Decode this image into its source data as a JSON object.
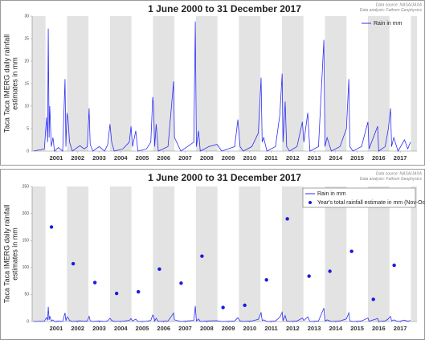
{
  "chart_data": [
    {
      "type": "line",
      "title": "1 June 2000 to 31 December 2017",
      "source": "Data source: NASA/JAXA",
      "analysis": "Data analysis: Fathom Geophysics",
      "ylabel": [
        "Taca Taca IMERG daily rainfall",
        "estimates in mm"
      ],
      "xlim": [
        2000.38,
        2018.28
      ],
      "ylim": [
        0,
        30
      ],
      "yticks": [
        0,
        5,
        10,
        15,
        20,
        25,
        30
      ],
      "xticks": [
        {
          "value": 2001.5,
          "label": "2001"
        },
        {
          "value": 2002.5,
          "label": "2002"
        },
        {
          "value": 2003.5,
          "label": "2003"
        },
        {
          "value": 2004.5,
          "label": "2004"
        },
        {
          "value": 2005.5,
          "label": "2005"
        },
        {
          "value": 2006.5,
          "label": "2006"
        },
        {
          "value": 2007.5,
          "label": "2007"
        },
        {
          "value": 2008.5,
          "label": "2008"
        },
        {
          "value": 2009.5,
          "label": "2009"
        },
        {
          "value": 2010.5,
          "label": "2010"
        },
        {
          "value": 2011.5,
          "label": "2011"
        },
        {
          "value": 2012.5,
          "label": "2012"
        },
        {
          "value": 2013.5,
          "label": "2013"
        },
        {
          "value": 2014.5,
          "label": "2014"
        },
        {
          "value": 2015.5,
          "label": "2015"
        },
        {
          "value": 2016.5,
          "label": "2016"
        },
        {
          "value": 2017.5,
          "label": "2017"
        }
      ],
      "legend": "upper right",
      "series": [
        {
          "name": "Rain in mm",
          "color": "#2f2ff5",
          "x": [
            2000.45,
            2000.95,
            2001.05,
            2001.1,
            2001.13,
            2001.17,
            2001.2,
            2001.27,
            2001.35,
            2001.42,
            2001.6,
            2001.8,
            2001.91,
            2001.95,
            2002.0,
            2002.05,
            2002.12,
            2002.25,
            2002.6,
            2002.8,
            2002.95,
            2003.03,
            2003.08,
            2003.2,
            2003.5,
            2003.75,
            2003.9,
            2004.0,
            2004.08,
            2004.2,
            2004.6,
            2004.9,
            2004.98,
            2005.05,
            2005.2,
            2005.3,
            2005.7,
            2005.9,
            2005.99,
            2006.03,
            2006.08,
            2006.15,
            2006.25,
            2006.7,
            2006.96,
            2007.0,
            2007.1,
            2007.3,
            2007.6,
            2007.9,
            2007.97,
            2008.02,
            2008.12,
            2008.2,
            2008.6,
            2008.98,
            2009.2,
            2009.5,
            2009.8,
            2009.95,
            2010.05,
            2010.2,
            2010.6,
            2010.9,
            2011.03,
            2011.08,
            2011.15,
            2011.3,
            2011.7,
            2011.9,
            2012.01,
            2012.05,
            2012.15,
            2012.22,
            2012.35,
            2012.7,
            2012.95,
            2013.02,
            2013.2,
            2013.3,
            2013.7,
            2013.95,
            2014.0,
            2014.1,
            2014.3,
            2014.7,
            2015.0,
            2015.11,
            2015.16,
            2015.3,
            2015.7,
            2016.0,
            2016.05,
            2016.45,
            2016.5,
            2016.8,
            2016.95,
            2017.05,
            2017.1,
            2017.2,
            2017.4,
            2017.7,
            2017.85,
            2017.98
          ],
          "values": [
            0,
            0.5,
            7.5,
            2,
            27.2,
            3,
            10,
            1,
            3,
            0,
            0.8,
            0,
            16,
            1,
            8.5,
            7,
            2,
            0,
            1.2,
            0.5,
            1,
            9.5,
            1.5,
            0,
            1,
            0,
            1.5,
            6,
            2,
            0,
            0.5,
            2,
            5.5,
            1,
            4.5,
            0,
            0.5,
            2,
            12,
            10,
            1,
            6,
            0,
            1,
            15.5,
            3,
            2,
            0,
            1,
            2,
            28.8,
            1,
            4.5,
            0,
            1,
            1.5,
            0,
            0.5,
            1,
            7,
            1,
            0,
            1,
            4,
            16.3,
            2,
            3,
            0,
            1,
            8,
            17.2,
            2,
            11,
            1,
            0,
            1,
            6.5,
            2,
            8.5,
            0,
            1,
            24.7,
            1,
            3,
            0,
            1,
            5,
            16,
            1,
            0,
            1,
            6.5,
            0.5,
            5.5,
            0,
            1,
            5,
            9.5,
            1,
            3,
            0,
            2.5,
            0.5,
            2
          ]
        }
      ]
    },
    {
      "type": "line",
      "title": "1 June 2000 to 31 December 2017",
      "source": "Data source: NASA/JAXA",
      "analysis": "Data analysis: Fathom Geophysics",
      "ylabel": [
        "Taca Taca IMERG daily rainfall",
        "estimates in mm"
      ],
      "xlim": [
        2000.38,
        2018.28
      ],
      "ylim": [
        0,
        250
      ],
      "yticks": [
        0,
        50,
        100,
        150,
        200,
        250
      ],
      "xticks": [
        {
          "value": 2001.5,
          "label": "2001"
        },
        {
          "value": 2002.5,
          "label": "2002"
        },
        {
          "value": 2003.5,
          "label": "2003"
        },
        {
          "value": 2004.5,
          "label": "2004"
        },
        {
          "value": 2005.5,
          "label": "2005"
        },
        {
          "value": 2006.5,
          "label": "2006"
        },
        {
          "value": 2007.5,
          "label": "2007"
        },
        {
          "value": 2008.5,
          "label": "2008"
        },
        {
          "value": 2009.5,
          "label": "2009"
        },
        {
          "value": 2010.5,
          "label": "2010"
        },
        {
          "value": 2011.5,
          "label": "2011"
        },
        {
          "value": 2012.5,
          "label": "2012"
        },
        {
          "value": 2013.5,
          "label": "2013"
        },
        {
          "value": 2014.5,
          "label": "2014"
        },
        {
          "value": 2015.5,
          "label": "2015"
        },
        {
          "value": 2016.5,
          "label": "2016"
        },
        {
          "value": 2017.5,
          "label": "2017"
        }
      ],
      "legend": "upper right",
      "series": [
        {
          "name": "Rain in mm",
          "color": "#2f2ff5",
          "x": [
            2000.45,
            2000.95,
            2001.05,
            2001.1,
            2001.13,
            2001.17,
            2001.2,
            2001.27,
            2001.35,
            2001.42,
            2001.6,
            2001.8,
            2001.91,
            2001.95,
            2002.0,
            2002.05,
            2002.12,
            2002.25,
            2002.6,
            2002.8,
            2002.95,
            2003.03,
            2003.08,
            2003.2,
            2003.5,
            2003.75,
            2003.9,
            2004.0,
            2004.08,
            2004.2,
            2004.6,
            2004.9,
            2004.98,
            2005.05,
            2005.2,
            2005.3,
            2005.7,
            2005.9,
            2005.99,
            2006.03,
            2006.08,
            2006.15,
            2006.25,
            2006.7,
            2006.96,
            2007.0,
            2007.1,
            2007.3,
            2007.6,
            2007.9,
            2007.97,
            2008.02,
            2008.12,
            2008.2,
            2008.6,
            2008.98,
            2009.2,
            2009.5,
            2009.8,
            2009.95,
            2010.05,
            2010.2,
            2010.6,
            2010.9,
            2011.03,
            2011.08,
            2011.15,
            2011.3,
            2011.7,
            2011.9,
            2012.01,
            2012.05,
            2012.15,
            2012.22,
            2012.35,
            2012.7,
            2012.95,
            2013.02,
            2013.2,
            2013.3,
            2013.7,
            2013.95,
            2014.0,
            2014.1,
            2014.3,
            2014.7,
            2015.0,
            2015.11,
            2015.16,
            2015.3,
            2015.7,
            2016.0,
            2016.05,
            2016.45,
            2016.5,
            2016.8,
            2016.95,
            2017.05,
            2017.1,
            2017.2,
            2017.4,
            2017.7,
            2017.85,
            2017.98
          ],
          "values": [
            0,
            0.5,
            7.5,
            2,
            27.2,
            3,
            10,
            1,
            3,
            0,
            0.8,
            0,
            16,
            1,
            8.5,
            7,
            2,
            0,
            1.2,
            0.5,
            1,
            9.5,
            1.5,
            0,
            1,
            0,
            1.5,
            6,
            2,
            0,
            0.5,
            2,
            5.5,
            1,
            4.5,
            0,
            0.5,
            2,
            12,
            10,
            1,
            6,
            0,
            1,
            15.5,
            3,
            2,
            0,
            1,
            2,
            28.8,
            1,
            4.5,
            0,
            1,
            1.5,
            0,
            0.5,
            1,
            7,
            1,
            0,
            1,
            4,
            16.3,
            2,
            3,
            0,
            1,
            8,
            17.2,
            2,
            11,
            1,
            0,
            1,
            6.5,
            2,
            8.5,
            0,
            1,
            24.7,
            1,
            3,
            0,
            1,
            5,
            16,
            1,
            0,
            1,
            6.5,
            0.5,
            5.5,
            0,
            1,
            5,
            9.5,
            1,
            3,
            0,
            2.5,
            0.5,
            2
          ]
        },
        {
          "name": "Year's total rainfall estimate in mm (Nov-Oct)",
          "color": "#1a1ae6",
          "marker": "dot",
          "x": [
            2001.28,
            2002.29,
            2003.3,
            2004.31,
            2005.32,
            2006.3,
            2007.31,
            2008.28,
            2009.26,
            2010.27,
            2011.28,
            2012.25,
            2013.26,
            2014.23,
            2015.24,
            2016.25,
            2017.22
          ],
          "values": [
            175,
            107,
            72,
            52,
            55,
            97,
            71,
            121,
            26,
            30,
            77,
            190,
            84,
            93,
            130,
            41,
            104
          ]
        }
      ]
    }
  ]
}
